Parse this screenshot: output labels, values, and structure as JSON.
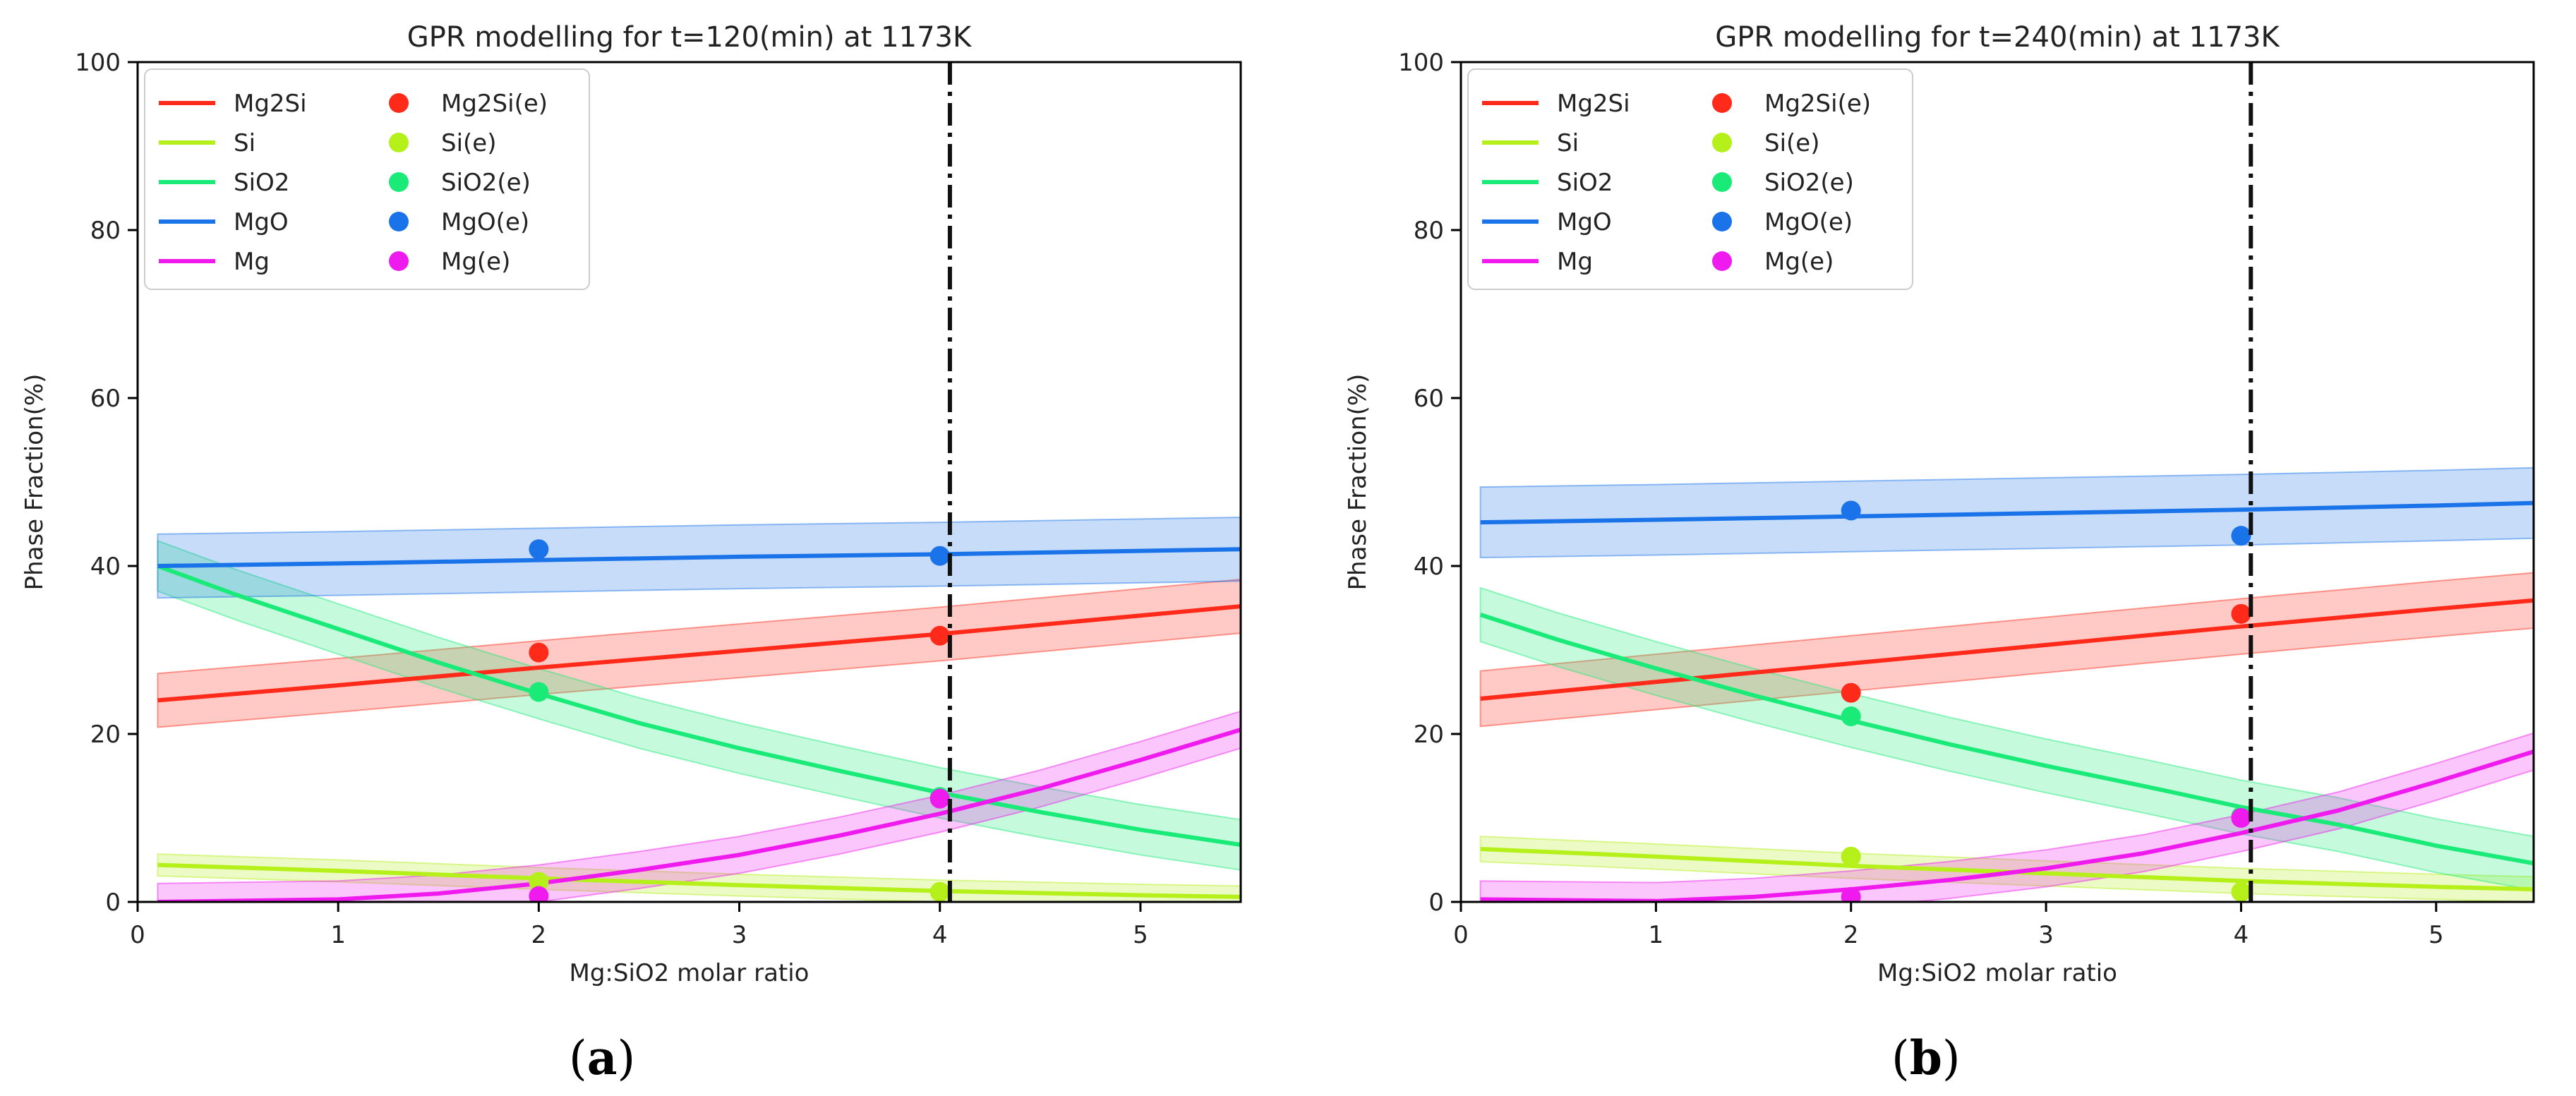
{
  "figure": {
    "panel_tags": [
      {
        "open": "(",
        "letter": "a",
        "close": ")"
      },
      {
        "open": "(",
        "letter": "b",
        "close": ")"
      }
    ]
  },
  "chart_data": [
    {
      "type": "line",
      "title": "GPR modelling for t=120(min) at 1173K",
      "xlabel": "Mg:SiO2 molar ratio",
      "ylabel": "Phase Fraction(%)",
      "xlim": [
        0,
        5.5
      ],
      "ylim": [
        0,
        100
      ],
      "xticks": [
        0,
        1,
        2,
        3,
        4,
        5
      ],
      "yticks": [
        0,
        20,
        40,
        60,
        80,
        100
      ],
      "grid": false,
      "legend": "top-left",
      "vline": {
        "x": 4.05,
        "style": "dash-dot"
      },
      "x": [
        0.1,
        5.5
      ],
      "series": [
        {
          "name": "Mg2Si",
          "color": "#ff2a1a",
          "curve": [
            [
              0.1,
              24.0
            ],
            [
              1,
              25.8
            ],
            [
              2,
              27.9
            ],
            [
              3,
              29.9
            ],
            [
              4,
              31.9
            ],
            [
              5,
              34.1
            ],
            [
              5.5,
              35.2
            ]
          ],
          "band": 3.2,
          "exp_name": "Mg2Si(e)",
          "exp": [
            [
              2,
              29.7
            ],
            [
              4,
              31.7
            ]
          ]
        },
        {
          "name": "Si",
          "color": "#b5f01a",
          "curve": [
            [
              0.1,
              4.4
            ],
            [
              1,
              3.7
            ],
            [
              2,
              2.8
            ],
            [
              3,
              2.0
            ],
            [
              4,
              1.3
            ],
            [
              5,
              0.8
            ],
            [
              5.5,
              0.6
            ]
          ],
          "band": 1.3,
          "exp_name": "Si(e)",
          "exp": [
            [
              2,
              2.4
            ],
            [
              4,
              1.2
            ]
          ]
        },
        {
          "name": "SiO2",
          "color": "#1aeb78",
          "curve": [
            [
              0.1,
              40.0
            ],
            [
              0.5,
              36.5
            ],
            [
              1,
              32.5
            ],
            [
              1.5,
              28.5
            ],
            [
              2,
              24.8
            ],
            [
              2.5,
              21.3
            ],
            [
              3,
              18.3
            ],
            [
              3.5,
              15.6
            ],
            [
              4,
              13.0
            ],
            [
              4.5,
              10.7
            ],
            [
              5,
              8.6
            ],
            [
              5.5,
              6.8
            ]
          ],
          "band": 3.0,
          "exp_name": "SiO2(e)",
          "exp": [
            [
              2,
              25.0
            ],
            [
              4,
              12.5
            ]
          ]
        },
        {
          "name": "MgO",
          "color": "#1a73e8",
          "curve": [
            [
              0.1,
              40.0
            ],
            [
              1,
              40.3
            ],
            [
              2,
              40.7
            ],
            [
              3,
              41.1
            ],
            [
              4,
              41.4
            ],
            [
              5,
              41.8
            ],
            [
              5.5,
              42.0
            ]
          ],
          "band": 3.8,
          "exp_name": "MgO(e)",
          "exp": [
            [
              2,
              42.0
            ],
            [
              4,
              41.2
            ]
          ]
        },
        {
          "name": "Mg",
          "color": "#ee1aee",
          "curve": [
            [
              0.1,
              0.0
            ],
            [
              1,
              0.3
            ],
            [
              1.5,
              1.0
            ],
            [
              2,
              2.2
            ],
            [
              2.5,
              3.8
            ],
            [
              3,
              5.6
            ],
            [
              3.5,
              7.9
            ],
            [
              4,
              10.5
            ],
            [
              4.5,
              13.5
            ],
            [
              5,
              16.9
            ],
            [
              5.5,
              20.5
            ]
          ],
          "band": 2.2,
          "exp_name": "Mg(e)",
          "exp": [
            [
              2,
              0.7
            ],
            [
              4,
              12.3
            ]
          ]
        }
      ]
    },
    {
      "type": "line",
      "title": "GPR modelling for t=240(min) at 1173K",
      "xlabel": "Mg:SiO2 molar ratio",
      "ylabel": "Phase Fraction(%)",
      "xlim": [
        0,
        5.5
      ],
      "ylim": [
        0,
        100
      ],
      "xticks": [
        0,
        1,
        2,
        3,
        4,
        5
      ],
      "yticks": [
        0,
        20,
        40,
        60,
        80,
        100
      ],
      "grid": false,
      "legend": "top-left",
      "vline": {
        "x": 4.05,
        "style": "dash-dot"
      },
      "x": [
        0.1,
        5.5
      ],
      "series": [
        {
          "name": "Mg2Si",
          "color": "#ff2a1a",
          "curve": [
            [
              0.1,
              24.2
            ],
            [
              1,
              26.2
            ],
            [
              2,
              28.4
            ],
            [
              3,
              30.6
            ],
            [
              4,
              32.8
            ],
            [
              5,
              34.9
            ],
            [
              5.5,
              35.9
            ]
          ],
          "band": 3.3,
          "exp_name": "Mg2Si(e)",
          "exp": [
            [
              2,
              24.9
            ],
            [
              4,
              34.3
            ]
          ]
        },
        {
          "name": "Si",
          "color": "#b5f01a",
          "curve": [
            [
              0.1,
              6.3
            ],
            [
              1,
              5.4
            ],
            [
              2,
              4.3
            ],
            [
              3,
              3.4
            ],
            [
              4,
              2.5
            ],
            [
              5,
              1.8
            ],
            [
              5.5,
              1.5
            ]
          ],
          "band": 1.5,
          "exp_name": "Si(e)",
          "exp": [
            [
              2,
              5.4
            ],
            [
              4,
              1.2
            ]
          ]
        },
        {
          "name": "SiO2",
          "color": "#1aeb78",
          "curve": [
            [
              0.1,
              34.2
            ],
            [
              0.5,
              31.2
            ],
            [
              1,
              27.8
            ],
            [
              1.5,
              24.6
            ],
            [
              2,
              21.6
            ],
            [
              2.5,
              18.8
            ],
            [
              3,
              16.2
            ],
            [
              3.5,
              13.8
            ],
            [
              4,
              11.3
            ],
            [
              4.5,
              9.2
            ],
            [
              5,
              6.7
            ],
            [
              5.5,
              4.6
            ]
          ],
          "band": 3.2,
          "exp_name": "SiO2(e)",
          "exp": [
            [
              2,
              22.1
            ],
            [
              4,
              10.2
            ]
          ]
        },
        {
          "name": "MgO",
          "color": "#1a73e8",
          "curve": [
            [
              0.1,
              45.2
            ],
            [
              1,
              45.5
            ],
            [
              2,
              45.9
            ],
            [
              3,
              46.3
            ],
            [
              4,
              46.7
            ],
            [
              5,
              47.2
            ],
            [
              5.5,
              47.5
            ]
          ],
          "band": 4.2,
          "exp_name": "MgO(e)",
          "exp": [
            [
              2,
              46.6
            ],
            [
              4,
              43.6
            ]
          ]
        },
        {
          "name": "Mg",
          "color": "#ee1aee",
          "curve": [
            [
              0.1,
              0.3
            ],
            [
              1,
              0.1
            ],
            [
              1.5,
              0.6
            ],
            [
              2,
              1.5
            ],
            [
              2.5,
              2.6
            ],
            [
              3,
              4.0
            ],
            [
              3.5,
              5.8
            ],
            [
              4,
              8.2
            ],
            [
              4.5,
              10.9
            ],
            [
              5,
              14.3
            ],
            [
              5.5,
              17.9
            ]
          ],
          "band": 2.2,
          "exp_name": "Mg(e)",
          "exp": [
            [
              2,
              0.6
            ],
            [
              4,
              10.0
            ]
          ]
        }
      ]
    }
  ]
}
